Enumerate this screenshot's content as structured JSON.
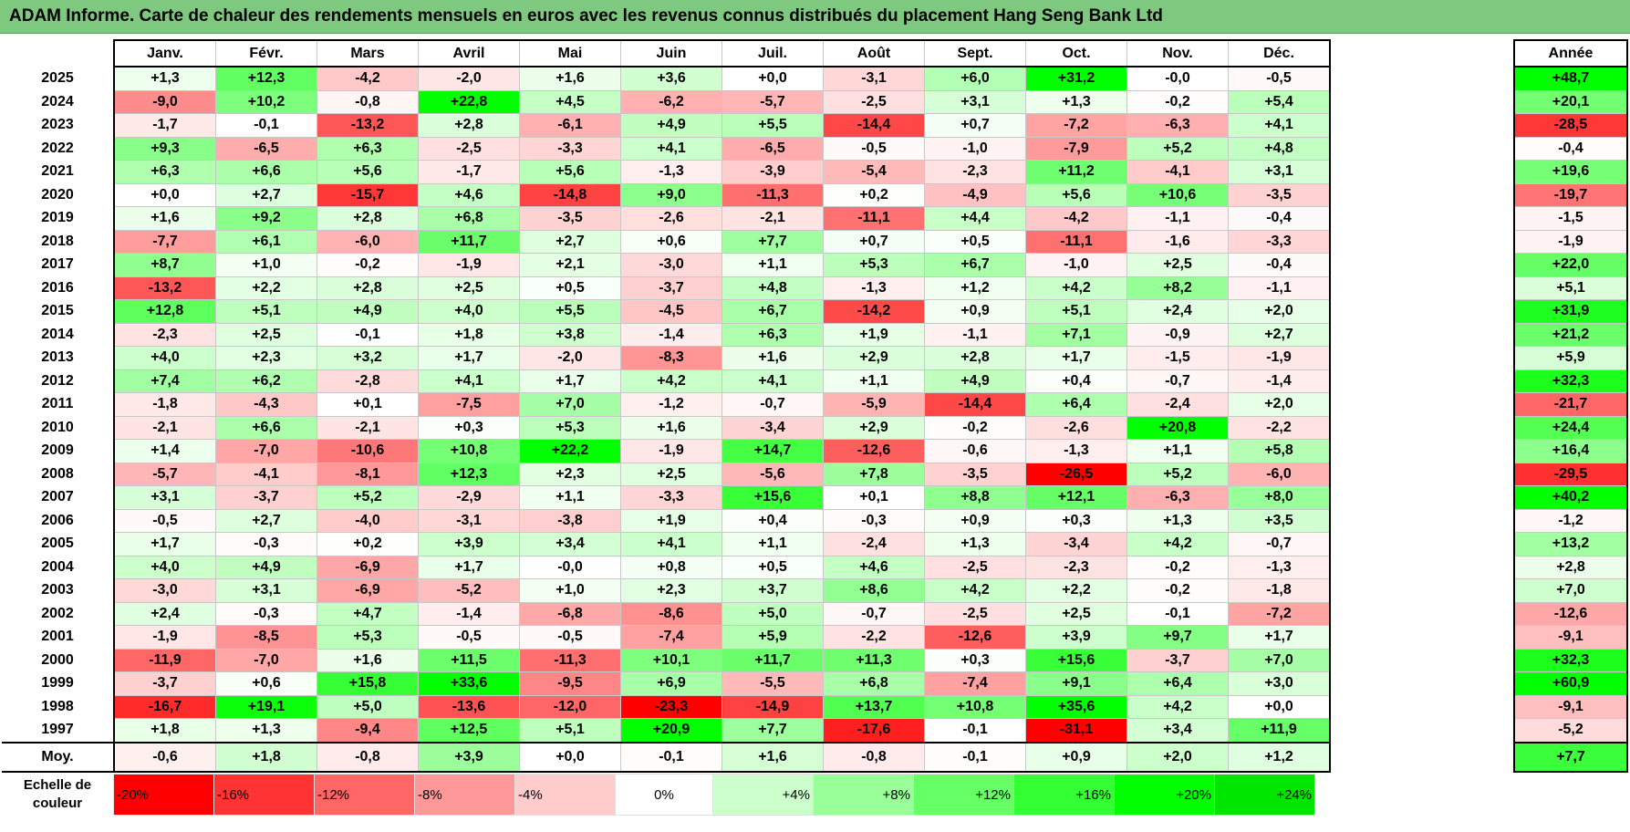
{
  "title": "ADAM Informe. Carte de chaleur des rendements mensuels en euros avec les revenus connus distribués du placement Hang Seng Bank Ltd",
  "chart_data": {
    "type": "heatmap",
    "title": "ADAM Informe. Carte de chaleur des rendements mensuels en euros avec les revenus connus distribués du placement Hang Seng Bank Ltd",
    "months": [
      "Janv.",
      "Févr.",
      "Mars",
      "Avril",
      "Mai",
      "Juin",
      "Juil.",
      "Août",
      "Sept.",
      "Oct.",
      "Nov.",
      "Déc."
    ],
    "year_column_label": "Année",
    "average_row_label": "Moy.",
    "rows": [
      {
        "year": "2025",
        "values": [
          "+1,3",
          "+12,3",
          "-4,2",
          "-2,0",
          "+1,6",
          "+3,6",
          "+0,0",
          "-3,1",
          "+6,0",
          "+31,2",
          "-0,0",
          "-0,5"
        ],
        "annual": "+48,7"
      },
      {
        "year": "2024",
        "values": [
          "-9,0",
          "+10,2",
          "-0,8",
          "+22,8",
          "+4,5",
          "-6,2",
          "-5,7",
          "-2,5",
          "+3,1",
          "+1,3",
          "-0,2",
          "+5,4"
        ],
        "annual": "+20,1"
      },
      {
        "year": "2023",
        "values": [
          "-1,7",
          "-0,1",
          "-13,2",
          "+2,8",
          "-6,1",
          "+4,9",
          "+5,5",
          "-14,4",
          "+0,7",
          "-7,2",
          "-6,3",
          "+4,1"
        ],
        "annual": "-28,5"
      },
      {
        "year": "2022",
        "values": [
          "+9,3",
          "-6,5",
          "+6,3",
          "-2,5",
          "-3,3",
          "+4,1",
          "-6,5",
          "-0,5",
          "-1,0",
          "-7,9",
          "+5,2",
          "+4,8"
        ],
        "annual": "-0,4"
      },
      {
        "year": "2021",
        "values": [
          "+6,3",
          "+6,6",
          "+5,6",
          "-1,7",
          "+5,6",
          "-1,3",
          "-3,9",
          "-5,4",
          "-2,3",
          "+11,2",
          "-4,1",
          "+3,1"
        ],
        "annual": "+19,6"
      },
      {
        "year": "2020",
        "values": [
          "+0,0",
          "+2,7",
          "-15,7",
          "+4,6",
          "-14,8",
          "+9,0",
          "-11,3",
          "+0,2",
          "-4,9",
          "+5,6",
          "+10,6",
          "-3,5"
        ],
        "annual": "-19,7"
      },
      {
        "year": "2019",
        "values": [
          "+1,6",
          "+9,2",
          "+2,8",
          "+6,8",
          "-3,5",
          "-2,6",
          "-2,1",
          "-11,1",
          "+4,4",
          "-4,2",
          "-1,1",
          "-0,4"
        ],
        "annual": "-1,5"
      },
      {
        "year": "2018",
        "values": [
          "-7,7",
          "+6,1",
          "-6,0",
          "+11,7",
          "+2,7",
          "+0,6",
          "+7,7",
          "+0,7",
          "+0,5",
          "-11,1",
          "-1,6",
          "-3,3"
        ],
        "annual": "-1,9"
      },
      {
        "year": "2017",
        "values": [
          "+8,7",
          "+1,0",
          "-0,2",
          "-1,9",
          "+2,1",
          "-3,0",
          "+1,1",
          "+5,3",
          "+6,7",
          "-1,0",
          "+2,5",
          "-0,4"
        ],
        "annual": "+22,0"
      },
      {
        "year": "2016",
        "values": [
          "-13,2",
          "+2,2",
          "+2,8",
          "+2,5",
          "+0,5",
          "-3,7",
          "+4,8",
          "-1,3",
          "+1,2",
          "+4,2",
          "+8,2",
          "-1,1"
        ],
        "annual": "+5,1"
      },
      {
        "year": "2015",
        "values": [
          "+12,8",
          "+5,1",
          "+4,9",
          "+4,0",
          "+5,5",
          "-4,5",
          "+6,7",
          "-14,2",
          "+0,9",
          "+5,1",
          "+2,4",
          "+2,0"
        ],
        "annual": "+31,9"
      },
      {
        "year": "2014",
        "values": [
          "-2,3",
          "+2,5",
          "-0,1",
          "+1,8",
          "+3,8",
          "-1,4",
          "+6,3",
          "+1,9",
          "-1,1",
          "+7,1",
          "-0,9",
          "+2,7"
        ],
        "annual": "+21,2"
      },
      {
        "year": "2013",
        "values": [
          "+4,0",
          "+2,3",
          "+3,2",
          "+1,7",
          "-2,0",
          "-8,3",
          "+1,6",
          "+2,9",
          "+2,8",
          "+1,7",
          "-1,5",
          "-1,9"
        ],
        "annual": "+5,9"
      },
      {
        "year": "2012",
        "values": [
          "+7,4",
          "+6,2",
          "-2,8",
          "+4,1",
          "+1,7",
          "+4,2",
          "+4,1",
          "+1,1",
          "+4,9",
          "+0,4",
          "-0,7",
          "-1,4"
        ],
        "annual": "+32,3"
      },
      {
        "year": "2011",
        "values": [
          "-1,8",
          "-4,3",
          "+0,1",
          "-7,5",
          "+7,0",
          "-1,2",
          "-0,7",
          "-5,9",
          "-14,4",
          "+6,4",
          "-2,4",
          "+2,0"
        ],
        "annual": "-21,7"
      },
      {
        "year": "2010",
        "values": [
          "-2,1",
          "+6,6",
          "-2,1",
          "+0,3",
          "+5,3",
          "+1,6",
          "-3,4",
          "+2,9",
          "-0,2",
          "-2,6",
          "+20,8",
          "-2,2"
        ],
        "annual": "+24,4"
      },
      {
        "year": "2009",
        "values": [
          "+1,4",
          "-7,0",
          "-10,6",
          "+10,8",
          "+22,2",
          "-1,9",
          "+14,7",
          "-12,6",
          "-0,6",
          "-1,3",
          "+1,1",
          "+5,8"
        ],
        "annual": "+16,4"
      },
      {
        "year": "2008",
        "values": [
          "-5,7",
          "-4,1",
          "-8,1",
          "+12,3",
          "+2,3",
          "+2,5",
          "-5,6",
          "+7,8",
          "-3,5",
          "-26,5",
          "+5,2",
          "-6,0"
        ],
        "annual": "-29,5"
      },
      {
        "year": "2007",
        "values": [
          "+3,1",
          "-3,7",
          "+5,2",
          "-2,9",
          "+1,1",
          "-3,3",
          "+15,6",
          "+0,1",
          "+8,8",
          "+12,1",
          "-6,3",
          "+8,0"
        ],
        "annual": "+40,2"
      },
      {
        "year": "2006",
        "values": [
          "-0,5",
          "+2,7",
          "-4,0",
          "-3,1",
          "-3,8",
          "+1,9",
          "+0,4",
          "-0,3",
          "+0,9",
          "+0,3",
          "+1,3",
          "+3,5"
        ],
        "annual": "-1,2"
      },
      {
        "year": "2005",
        "values": [
          "+1,7",
          "-0,3",
          "+0,2",
          "+3,9",
          "+3,4",
          "+4,1",
          "+1,1",
          "-2,4",
          "+1,3",
          "-3,4",
          "+4,2",
          "-0,7"
        ],
        "annual": "+13,2"
      },
      {
        "year": "2004",
        "values": [
          "+4,0",
          "+4,9",
          "-6,9",
          "+1,7",
          "-0,0",
          "+0,8",
          "+0,5",
          "+4,6",
          "-2,5",
          "-2,3",
          "-0,2",
          "-1,3"
        ],
        "annual": "+2,8"
      },
      {
        "year": "2003",
        "values": [
          "-3,0",
          "+3,1",
          "-6,9",
          "-5,2",
          "+1,0",
          "+2,3",
          "+3,7",
          "+8,6",
          "+4,2",
          "+2,2",
          "-0,2",
          "-1,8"
        ],
        "annual": "+7,0"
      },
      {
        "year": "2002",
        "values": [
          "+2,4",
          "-0,3",
          "+4,7",
          "-1,4",
          "-6,8",
          "-8,6",
          "+5,0",
          "-0,7",
          "-2,5",
          "+2,5",
          "-0,1",
          "-7,2"
        ],
        "annual": "-12,6"
      },
      {
        "year": "2001",
        "values": [
          "-1,9",
          "-8,5",
          "+5,3",
          "-0,5",
          "-0,5",
          "-7,4",
          "+5,9",
          "-2,2",
          "-12,6",
          "+3,9",
          "+9,7",
          "+1,7"
        ],
        "annual": "-9,1"
      },
      {
        "year": "2000",
        "values": [
          "-11,9",
          "-7,0",
          "+1,6",
          "+11,5",
          "-11,3",
          "+10,1",
          "+11,7",
          "+11,3",
          "+0,3",
          "+15,6",
          "-3,7",
          "+7,0"
        ],
        "annual": "+32,3"
      },
      {
        "year": "1999",
        "values": [
          "-3,7",
          "+0,6",
          "+15,8",
          "+33,6",
          "-9,5",
          "+6,9",
          "-5,5",
          "+6,8",
          "-7,4",
          "+9,1",
          "+6,4",
          "+3,0"
        ],
        "annual": "+60,9"
      },
      {
        "year": "1998",
        "values": [
          "-16,7",
          "+19,1",
          "+5,0",
          "-13,6",
          "-12,0",
          "-23,3",
          "-14,9",
          "+13,7",
          "+10,8",
          "+35,6",
          "+4,2",
          "+0,0"
        ],
        "annual": "-9,1"
      },
      {
        "year": "1997",
        "values": [
          "+1,8",
          "+1,3",
          "-9,4",
          "+12,5",
          "+5,1",
          "+20,9",
          "+7,7",
          "-17,6",
          "-0,1",
          "-31,1",
          "+3,4",
          "+11,9"
        ],
        "annual": "-5,2"
      }
    ],
    "averages": {
      "values": [
        "-0,6",
        "+1,8",
        "-0,8",
        "+3,9",
        "+0,0",
        "-0,1",
        "+1,6",
        "-0,8",
        "-0,1",
        "+0,9",
        "+2,0",
        "+1,2"
      ],
      "annual": "+7,7"
    },
    "color_scale": {
      "label": "Echelle de couleur",
      "stops": [
        {
          "text": "-20%",
          "value": -20,
          "color": "#ff0000"
        },
        {
          "text": "-16%",
          "value": -16,
          "color": "#ff3333"
        },
        {
          "text": "-12%",
          "value": -12,
          "color": "#ff6666"
        },
        {
          "text": "-8%",
          "value": -8,
          "color": "#ff9999"
        },
        {
          "text": "-4%",
          "value": -4,
          "color": "#ffcccc"
        },
        {
          "text": "0%",
          "value": 0,
          "color": "#ffffff"
        },
        {
          "text": "+4%",
          "value": 4,
          "color": "#ccffcc"
        },
        {
          "text": "+8%",
          "value": 8,
          "color": "#99ff99"
        },
        {
          "text": "+12%",
          "value": 12,
          "color": "#66ff66"
        },
        {
          "text": "+16%",
          "value": 16,
          "color": "#33ff33"
        },
        {
          "text": "+20%",
          "value": 20,
          "color": "#00ff00"
        },
        {
          "text": "+24%",
          "value": 24,
          "color": "#00e600"
        }
      ]
    }
  }
}
